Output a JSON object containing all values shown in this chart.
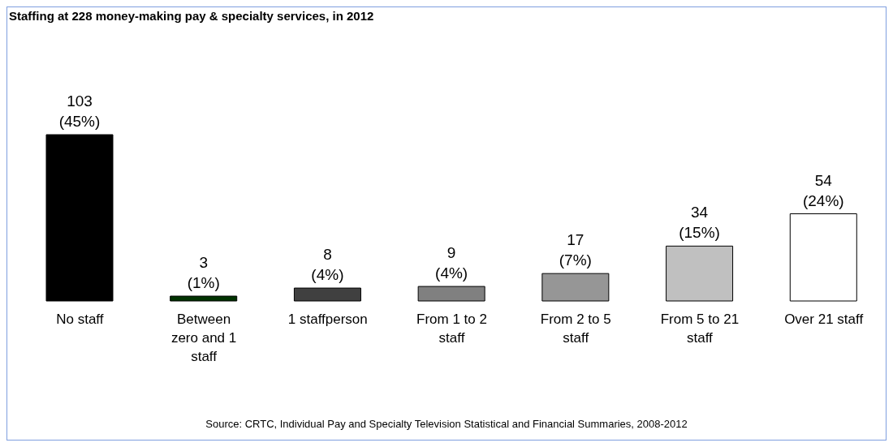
{
  "chart_data": {
    "type": "bar",
    "title": "Staffing at 228 money-making pay & specialty services,  in 2012",
    "categories": [
      "No staff",
      "Between zero and 1 staff",
      "1 staffperson",
      "From 1 to 2 staff",
      "From 2 to 5 staff",
      "From 5 to 21 staff",
      "Over 21 staff"
    ],
    "values": [
      103,
      3,
      8,
      9,
      17,
      34,
      54
    ],
    "colors": [
      "#000000",
      "#003300",
      "#404040",
      "#808080",
      "#969696",
      "#c0c0c0",
      "#ffffff"
    ],
    "value_labels": [
      "103 (45%)",
      "3 (1%)",
      "8 (4%)",
      "9 (4%)",
      "17 (7%)",
      "34 (15%)",
      "54 (24%)"
    ],
    "annotations": [
      "Source:  CRTC, Individual Pay and Specialty Television Statistical and Financial Summaries, 2008-2012"
    ],
    "grid": false,
    "legend": false
  }
}
